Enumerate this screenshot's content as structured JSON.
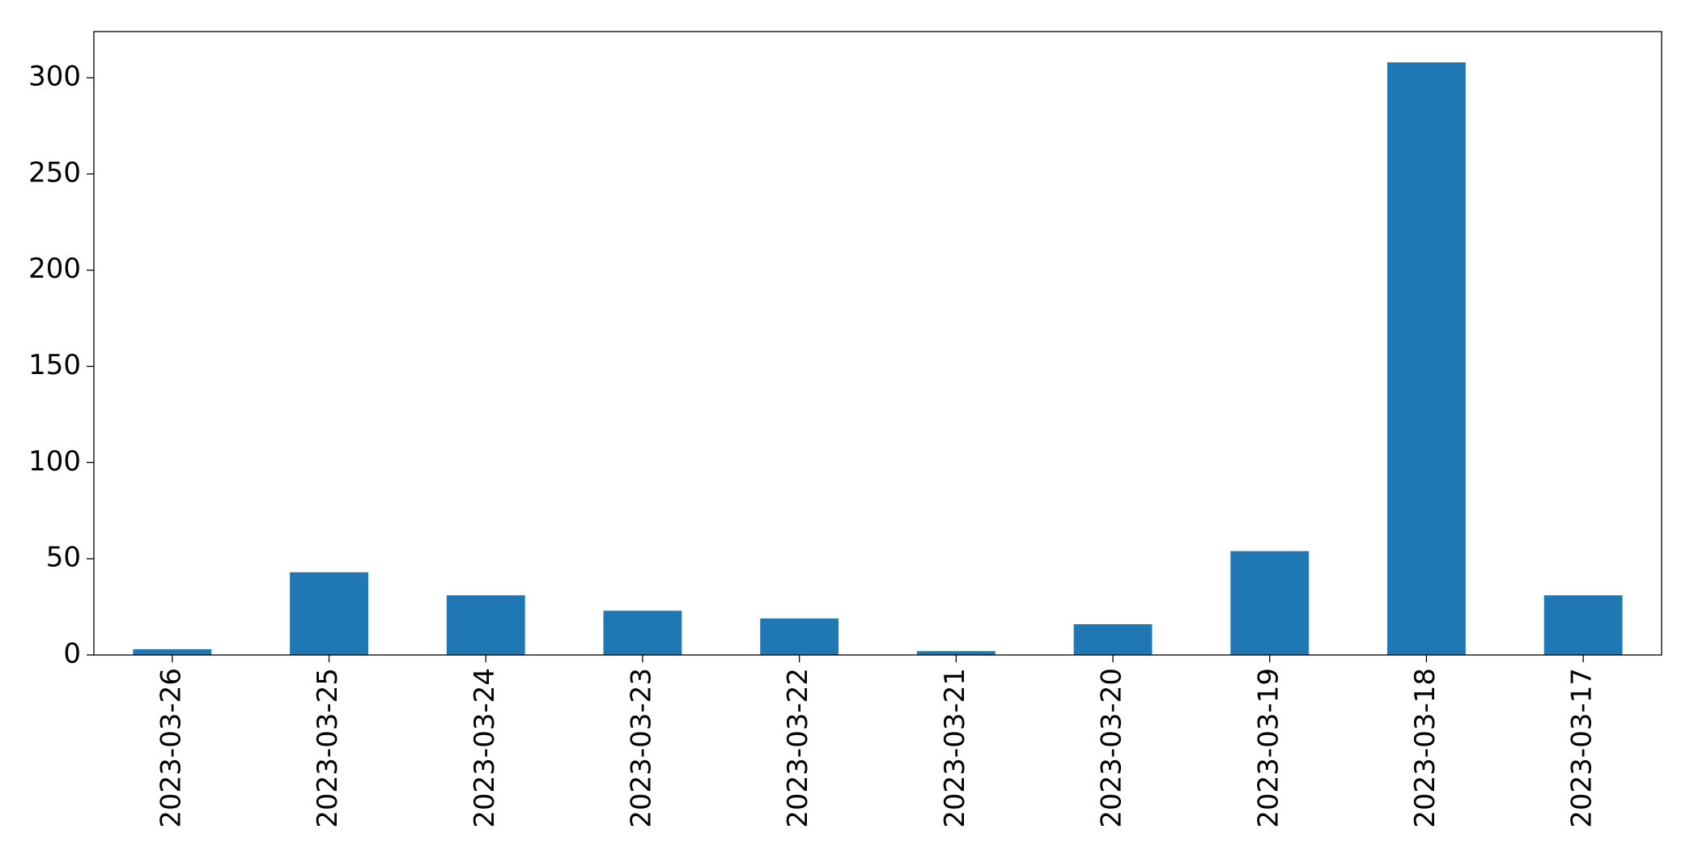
{
  "chart_data": {
    "type": "bar",
    "categories": [
      "2023-03-26",
      "2023-03-25",
      "2023-03-24",
      "2023-03-23",
      "2023-03-22",
      "2023-03-21",
      "2023-03-20",
      "2023-03-19",
      "2023-03-18",
      "2023-03-17"
    ],
    "values": [
      3,
      43,
      31,
      23,
      19,
      2,
      16,
      54,
      308,
      31
    ],
    "color": "#1f77b4",
    "ylim": [
      0,
      324
    ],
    "yticks": [
      0,
      50,
      100,
      150,
      200,
      250,
      300
    ],
    "grid": false
  }
}
